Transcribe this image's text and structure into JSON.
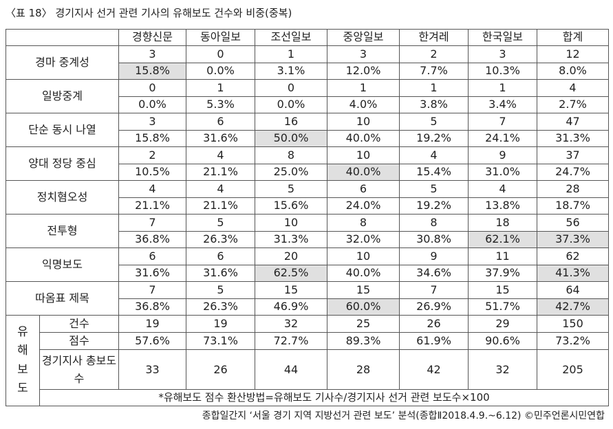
{
  "title": "〈표 18〉 경기지사 선거 관련 기사의 유해보도 건수와 비중(중복)",
  "table": {
    "header": [
      "경향신문",
      "동아일보",
      "조선일보",
      "중앙일보",
      "한겨레",
      "한국일보",
      "합계"
    ],
    "rows": [
      {
        "label": "경마 중계성",
        "counts": [
          3,
          0,
          1,
          3,
          2,
          3,
          12
        ],
        "percents": [
          "15.8%",
          "0.0%",
          "3.1%",
          "12.0%",
          "7.7%",
          "10.3%",
          "8.0%"
        ],
        "highlight": [
          0
        ]
      },
      {
        "label": "일방중계",
        "counts": [
          0,
          1,
          0,
          1,
          1,
          1,
          4
        ],
        "percents": [
          "0.0%",
          "5.3%",
          "0.0%",
          "4.0%",
          "3.8%",
          "3.4%",
          "2.7%"
        ],
        "highlight": []
      },
      {
        "label": "단순 동시 나열",
        "counts": [
          3,
          6,
          16,
          10,
          5,
          7,
          47
        ],
        "percents": [
          "15.8%",
          "31.6%",
          "50.0%",
          "40.0%",
          "19.2%",
          "24.1%",
          "31.3%"
        ],
        "highlight": [
          2
        ]
      },
      {
        "label": "양대 정당 중심",
        "counts": [
          2,
          4,
          8,
          10,
          4,
          9,
          37
        ],
        "percents": [
          "10.5%",
          "21.1%",
          "25.0%",
          "40.0%",
          "15.4%",
          "31.0%",
          "24.7%"
        ],
        "highlight": [
          3
        ]
      },
      {
        "label": "정치혐오성",
        "counts": [
          4,
          4,
          5,
          6,
          5,
          4,
          28
        ],
        "percents": [
          "21.1%",
          "21.1%",
          "15.6%",
          "24.0%",
          "19.2%",
          "13.8%",
          "18.7%"
        ],
        "highlight": []
      },
      {
        "label": "전투형",
        "counts": [
          7,
          5,
          10,
          8,
          8,
          18,
          56
        ],
        "percents": [
          "36.8%",
          "26.3%",
          "31.3%",
          "32.0%",
          "30.8%",
          "62.1%",
          "37.3%"
        ],
        "highlight": [
          5,
          6
        ]
      },
      {
        "label": "익명보도",
        "counts": [
          6,
          6,
          20,
          10,
          9,
          11,
          62
        ],
        "percents": [
          "31.6%",
          "31.6%",
          "62.5%",
          "40.0%",
          "34.6%",
          "37.9%",
          "41.3%"
        ],
        "highlight": [
          2,
          6
        ]
      },
      {
        "label": "따옴표 제목",
        "counts": [
          7,
          5,
          15,
          15,
          7,
          15,
          64
        ],
        "percents": [
          "36.8%",
          "26.3%",
          "46.9%",
          "60.0%",
          "26.9%",
          "51.7%",
          "42.7%"
        ],
        "highlight": [
          3,
          6
        ]
      }
    ],
    "summary": {
      "label": "유해보도",
      "rows": [
        {
          "label": "건수",
          "values": [
            19,
            19,
            32,
            25,
            26,
            29,
            150
          ]
        },
        {
          "label": "점수",
          "values": [
            "57.6%",
            "73.1%",
            "72.7%",
            "89.3%",
            "61.9%",
            "90.6%",
            "73.2%"
          ]
        },
        {
          "label": "경기지사 총보도수",
          "values": [
            33,
            26,
            44,
            28,
            42,
            32,
            205
          ]
        }
      ],
      "note": "*유해보도 점수 환산방법=유해보도 기사수/경기지사 선거 관련 보도수×100"
    }
  },
  "source": "종합일간지 ‘서울 경기 지역 지방선거 관련 보도’ 분석(종합Ⅱ2018.4.9.~6.12) ©민주언론시민연합"
}
